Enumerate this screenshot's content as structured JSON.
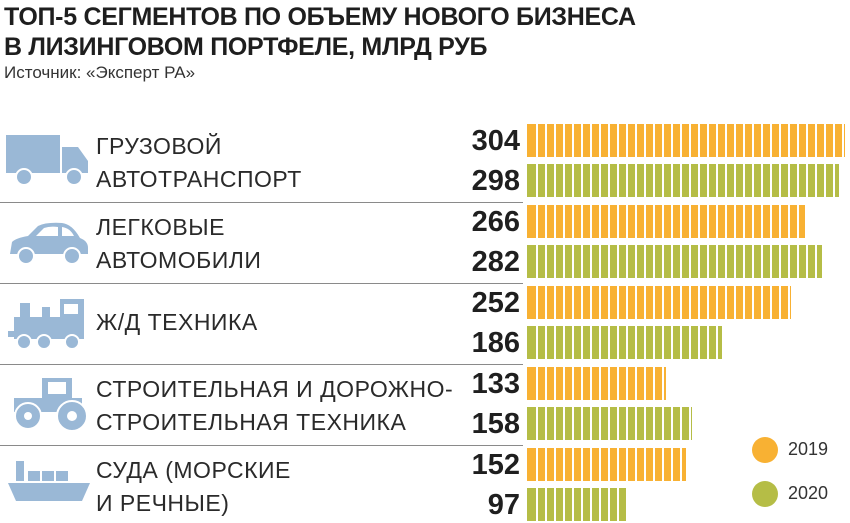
{
  "header": {
    "title_line1": "ТОП-5 СЕГМЕНТОВ ПО ОБЪЕМУ НОВОГО БИЗНЕСА",
    "title_line2": "В ЛИЗИНГОВОМ ПОРТФЕЛЕ, МЛРД РУБ",
    "source": "Источник: «Эксперт РА»"
  },
  "colors": {
    "series_2019": "#f8b133",
    "series_2020": "#b5bd46",
    "icon": "#9ab8d6"
  },
  "segments": [
    {
      "icon": "truck-icon",
      "line1": "ГРУЗОВОЙ",
      "line2": "АВТОТРАНСПОРТ"
    },
    {
      "icon": "car-icon",
      "line1": "ЛЕГКОВЫЕ",
      "line2": "АВТОМОБИЛИ"
    },
    {
      "icon": "locomotive-icon",
      "line1": "Ж/Д ТЕХНИКА",
      "line2": ""
    },
    {
      "icon": "tractor-icon",
      "line1": "СТРОИТЕЛЬНАЯ И ДОРОЖНО-",
      "line2": "СТРОИТЕЛЬНАЯ ТЕХНИКА"
    },
    {
      "icon": "ship-icon",
      "line1": "СУДА (МОРСКИЕ",
      "line2": "И РЕЧНЫЕ)"
    }
  ],
  "legend": {
    "label_2019": "2019",
    "label_2020": "2020"
  },
  "chart_data": {
    "type": "bar",
    "orientation": "horizontal",
    "title": "ТОП-5 СЕГМЕНТОВ ПО ОБЪЕМУ НОВОГО БИЗНЕСА В ЛИЗИНГОВОМ ПОРТФЕЛЕ, МЛРД РУБ",
    "categories": [
      "ГРУЗОВОЙ АВТОТРАНСПОРТ",
      "ЛЕГКОВЫЕ АВТОМОБИЛИ",
      "Ж/Д ТЕХНИКА",
      "СТРОИТЕЛЬНАЯ И ДОРОЖНО-СТРОИТЕЛЬНАЯ ТЕХНИКА",
      "СУДА (МОРСКИЕ И РЕЧНЫЕ)"
    ],
    "series": [
      {
        "name": "2019",
        "values": [
          304,
          266,
          252,
          133,
          152
        ],
        "color": "#f8b133"
      },
      {
        "name": "2020",
        "values": [
          298,
          282,
          186,
          158,
          97
        ],
        "color": "#b5bd46"
      }
    ],
    "xlim": [
      0,
      304
    ],
    "grid": false,
    "legend": "bottom-right"
  }
}
